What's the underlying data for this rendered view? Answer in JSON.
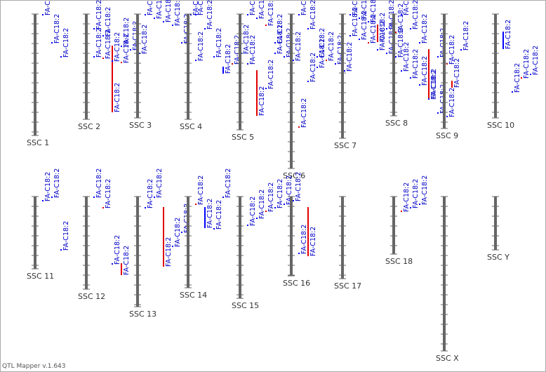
{
  "chromosomes": [
    {
      "name": "SSC 1",
      "length": 173,
      "qtls": [
        {
          "label": "FA-C18:2",
          "start": 0,
          "end": 2,
          "color": "#0000ff"
        },
        {
          "label": "FA-C18:2",
          "start": 40,
          "end": 42,
          "color": "#0000ff"
        },
        {
          "label": "FA-C18:2",
          "start": 60,
          "end": 62,
          "color": "#0000ff"
        }
      ]
    },
    {
      "name": "SSC 2",
      "length": 150,
      "qtls": [
        {
          "label": "FA-C18:2",
          "start": 20,
          "end": 22,
          "color": "#0000ff"
        },
        {
          "label": "FA-C18:2",
          "start": 30,
          "end": 32,
          "color": "#0000ff"
        },
        {
          "label": "FA-C18:2",
          "start": 45,
          "end": 140,
          "color": "#e00000"
        },
        {
          "label": "FA-C18:2",
          "start": 45,
          "end": 47,
          "color": "#0000ff"
        },
        {
          "label": "FA-C18:2",
          "start": 50,
          "end": 52,
          "color": "#0000ff"
        },
        {
          "label": "FA-C18:2",
          "start": 55,
          "end": 57,
          "color": "#0000ff"
        },
        {
          "label": "FA-C18:2",
          "start": 60,
          "end": 62,
          "color": "#0000ff"
        },
        {
          "label": "FA-C18:2",
          "start": 62,
          "end": 64,
          "color": "#e00000"
        },
        {
          "label": "FA-C18:2",
          "start": 66,
          "end": 68,
          "color": "#0000ff"
        },
        {
          "label": "FA-C18:2",
          "start": 68,
          "end": 70,
          "color": "#e00000"
        }
      ]
    },
    {
      "name": "SSC 3",
      "length": 148,
      "qtls": [
        {
          "label": "FA-C18:2",
          "start": 0,
          "end": 2,
          "color": "#0000ff"
        },
        {
          "label": "FA-C18:2",
          "start": 5,
          "end": 7,
          "color": "#0000ff"
        },
        {
          "label": "FA-C18:2",
          "start": 10,
          "end": 12,
          "color": "#0000ff"
        },
        {
          "label": "FA-C18:2",
          "start": 15,
          "end": 17,
          "color": "#0000ff"
        },
        {
          "label": "FA-C18:2",
          "start": 40,
          "end": 42,
          "color": "#0000ff"
        },
        {
          "label": "FA-C18:2",
          "start": 0,
          "end": 2,
          "color": "#0000ff"
        }
      ]
    },
    {
      "name": "SSC 4",
      "length": 150,
      "qtls": [
        {
          "label": "FA-C18:2",
          "start": 0,
          "end": 2,
          "color": "#0000ff"
        },
        {
          "label": "FA-C18:2",
          "start": 20,
          "end": 22,
          "color": "#0000ff"
        },
        {
          "label": "FA-C18:2",
          "start": 60,
          "end": 62,
          "color": "#0000ff"
        },
        {
          "label": "FA-C18:2",
          "start": 75,
          "end": 85,
          "color": "#0000ff"
        },
        {
          "label": "FA-C18:2",
          "start": 70,
          "end": 72,
          "color": "#e00000"
        },
        {
          "label": "FA-C18:2",
          "start": 55,
          "end": 57,
          "color": "#0000ff"
        },
        {
          "label": "FA-C18:2",
          "start": 65,
          "end": 67,
          "color": "#0000ff"
        }
      ]
    },
    {
      "name": "SSC 5",
      "length": 165,
      "qtls": [
        {
          "label": "FA-C18:2",
          "start": 0,
          "end": 2,
          "color": "#0000ff"
        },
        {
          "label": "FA-C18:2",
          "start": 5,
          "end": 7,
          "color": "#0000ff"
        },
        {
          "label": "FA-C18:2",
          "start": 15,
          "end": 17,
          "color": "#e00000"
        },
        {
          "label": "FA-C18:2",
          "start": 40,
          "end": 42,
          "color": "#0000ff"
        },
        {
          "label": "FA-C18:2",
          "start": 60,
          "end": 62,
          "color": "#0000ff"
        },
        {
          "label": "FA-C18:2",
          "start": 65,
          "end": 67,
          "color": "#0000ff"
        },
        {
          "label": "FA-C18:2",
          "start": 70,
          "end": 72,
          "color": "#0000ff"
        },
        {
          "label": "FA-C18:2",
          "start": 80,
          "end": 145,
          "color": "#e00000"
        },
        {
          "label": "FA-C18:2",
          "start": 105,
          "end": 107,
          "color": "#0000ff"
        },
        {
          "label": "FA-C18:2",
          "start": 55,
          "end": 57,
          "color": "#0000ff"
        }
      ]
    },
    {
      "name": "SSC 6",
      "length": 220,
      "qtls": [
        {
          "label": "FA-C18:2",
          "start": 0,
          "end": 2,
          "color": "#0000ff"
        },
        {
          "label": "FA-C18:2",
          "start": 20,
          "end": 22,
          "color": "#0000ff"
        },
        {
          "label": "FA-C18:2",
          "start": 60,
          "end": 62,
          "color": "#0000ff"
        },
        {
          "label": "FA-C18:2",
          "start": 65,
          "end": 67,
          "color": "#e00000"
        },
        {
          "label": "FA-C18:2",
          "start": 70,
          "end": 72,
          "color": "#0000ff"
        },
        {
          "label": "FA-C18:2",
          "start": 80,
          "end": 82,
          "color": "#0000ff"
        },
        {
          "label": "FA-C18:2",
          "start": 160,
          "end": 162,
          "color": "#e00000"
        },
        {
          "label": "FA-C18:2",
          "start": 95,
          "end": 97,
          "color": "#0000ff"
        },
        {
          "label": "FA-C18:2",
          "start": 75,
          "end": 77,
          "color": "#0000ff"
        }
      ]
    },
    {
      "name": "SSC 7",
      "length": 177,
      "qtls": [
        {
          "label": "FA-C18:2",
          "start": 0,
          "end": 2,
          "color": "#0000ff"
        },
        {
          "label": "FA-C18:2",
          "start": 5,
          "end": 7,
          "color": "#0000ff"
        },
        {
          "label": "FA-C18:2",
          "start": 10,
          "end": 12,
          "color": "#0000ff"
        },
        {
          "label": "FA-C18:2",
          "start": 15,
          "end": 40,
          "color": "#e00000"
        },
        {
          "label": "FA-C18:2",
          "start": 20,
          "end": 22,
          "color": "#0000ff"
        },
        {
          "label": "FA-C18:2",
          "start": 25,
          "end": 27,
          "color": "#e00000"
        },
        {
          "label": "FA-C18:2",
          "start": 30,
          "end": 32,
          "color": "#0000ff"
        },
        {
          "label": "FA-C18:2",
          "start": 35,
          "end": 37,
          "color": "#0000ff"
        },
        {
          "label": "FA-C18:2",
          "start": 40,
          "end": 42,
          "color": "#e00000"
        },
        {
          "label": "FA-C18:2",
          "start": 50,
          "end": 52,
          "color": "#0000ff"
        },
        {
          "label": "FA-C18:2",
          "start": 55,
          "end": 57,
          "color": "#0000ff"
        },
        {
          "label": "FA-C18:2",
          "start": 60,
          "end": 62,
          "color": "#0000ff"
        }
      ]
    },
    {
      "name": "SSC 8",
      "length": 145,
      "qtls": [
        {
          "label": "FA-C18:2",
          "start": 0,
          "end": 2,
          "color": "#0000ff"
        },
        {
          "label": "FA-C18:2",
          "start": 20,
          "end": 22,
          "color": "#0000ff"
        },
        {
          "label": "FA-C18:2",
          "start": 40,
          "end": 42,
          "color": "#0000ff"
        },
        {
          "label": "FA-C18:2",
          "start": 50,
          "end": 120,
          "color": "#e00000"
        },
        {
          "label": "FA-C18:2",
          "start": 60,
          "end": 62,
          "color": "#0000ff"
        },
        {
          "label": "FA-C18:2",
          "start": 70,
          "end": 72,
          "color": "#e00000"
        },
        {
          "label": "FA-C18:2",
          "start": 80,
          "end": 82,
          "color": "#0000ff"
        },
        {
          "label": "FA-C18:2",
          "start": 90,
          "end": 92,
          "color": "#0000ff"
        },
        {
          "label": "FA-C18:2",
          "start": 100,
          "end": 102,
          "color": "#0000ff"
        },
        {
          "label": "FA-C18:2",
          "start": 120,
          "end": 122,
          "color": "#0000ff"
        },
        {
          "label": "FA-C18:2",
          "start": 140,
          "end": 142,
          "color": "#0000ff"
        },
        {
          "label": "FA-C18:2",
          "start": 145,
          "end": 147,
          "color": "#0000ff"
        }
      ]
    },
    {
      "name": "SSC 9",
      "length": 163,
      "qtls": [
        {
          "label": "FA-C18:2",
          "start": 95,
          "end": 105,
          "color": "#e00000"
        },
        {
          "label": "FA-C18:2",
          "start": 50,
          "end": 52,
          "color": "#0000ff"
        }
      ]
    },
    {
      "name": "SSC 10",
      "length": 148,
      "qtls": [
        {
          "label": "FA-C18:2",
          "start": 25,
          "end": 50,
          "color": "#0000ff"
        },
        {
          "label": "FA-C18:2",
          "start": 110,
          "end": 112,
          "color": "#0000ff"
        },
        {
          "label": "FA-C18:2",
          "start": 90,
          "end": 92,
          "color": "#e00000"
        },
        {
          "label": "FA-C18:2",
          "start": 85,
          "end": 87,
          "color": "#0000ff"
        }
      ]
    },
    {
      "name": "SSC 11",
      "length": 103,
      "qtls": [
        {
          "label": "FA-C18:2",
          "start": 5,
          "end": 7,
          "color": "#0000ff"
        },
        {
          "label": "FA-C18:2",
          "start": 0,
          "end": 2,
          "color": "#0000ff"
        },
        {
          "label": "FA-C18:2",
          "start": 75,
          "end": 77,
          "color": "#0000ff"
        }
      ]
    },
    {
      "name": "SSC 12",
      "length": 132,
      "qtls": [
        {
          "label": "FA-C18:2",
          "start": 0,
          "end": 2,
          "color": "#0000ff"
        },
        {
          "label": "FA-C18:2",
          "start": 15,
          "end": 17,
          "color": "#e00000"
        },
        {
          "label": "FA-C18:2",
          "start": 95,
          "end": 97,
          "color": "#0000ff"
        },
        {
          "label": "FA-C18:2",
          "start": 95,
          "end": 112,
          "color": "#e00000"
        }
      ]
    },
    {
      "name": "SSC 13",
      "length": 157,
      "qtls": [
        {
          "label": "FA-C18:2",
          "start": 15,
          "end": 17,
          "color": "#0000ff"
        },
        {
          "label": "FA-C18:2",
          "start": 0,
          "end": 2,
          "color": "#0000ff"
        },
        {
          "label": "FA-C18:2",
          "start": 15,
          "end": 100,
          "color": "#e00000"
        },
        {
          "label": "FA-C18:2",
          "start": 70,
          "end": 72,
          "color": "#0000ff"
        },
        {
          "label": "FA-C18:2",
          "start": 50,
          "end": 52,
          "color": "#0000ff"
        }
      ]
    },
    {
      "name": "SSC 14",
      "length": 130,
      "qtls": [
        {
          "label": "FA-C18:2",
          "start": 10,
          "end": 12,
          "color": "#e00000"
        },
        {
          "label": "FA-C18:2",
          "start": 15,
          "end": 45,
          "color": "#0000ff"
        },
        {
          "label": "FA-C18:2",
          "start": 45,
          "end": 47,
          "color": "#0000ff"
        },
        {
          "label": "FA-C18:2",
          "start": 0,
          "end": 2,
          "color": "#0000ff"
        }
      ]
    },
    {
      "name": "SSC 15",
      "length": 145,
      "qtls": [
        {
          "label": "FA-C18:2",
          "start": 40,
          "end": 42,
          "color": "#0000ff"
        },
        {
          "label": "FA-C18:2",
          "start": 30,
          "end": 32,
          "color": "#0000ff"
        },
        {
          "label": "FA-C18:2",
          "start": 20,
          "end": 22,
          "color": "#e00000"
        },
        {
          "label": "FA-C18:2",
          "start": 15,
          "end": 17,
          "color": "#0000ff"
        },
        {
          "label": "FA-C18:2",
          "start": 10,
          "end": 12,
          "color": "#0000ff"
        },
        {
          "label": "FA-C18:2",
          "start": 5,
          "end": 7,
          "color": "#0000ff"
        }
      ]
    },
    {
      "name": "SSC 16",
      "length": 113,
      "qtls": [
        {
          "label": "FA-C18:2",
          "start": 80,
          "end": 82,
          "color": "#0000ff"
        },
        {
          "label": "FA-C18:2",
          "start": 15,
          "end": 85,
          "color": "#e00000"
        }
      ]
    },
    {
      "name": "SSC 17",
      "length": 117,
      "qtls": []
    },
    {
      "name": "SSC 18",
      "length": 82,
      "qtls": [
        {
          "label": "FA-C18:2",
          "start": 20,
          "end": 22,
          "color": "#e00000"
        },
        {
          "label": "FA-C18:2",
          "start": 15,
          "end": 17,
          "color": "#0000ff"
        },
        {
          "label": "FA-C18:2",
          "start": 10,
          "end": 12,
          "color": "#0000ff"
        }
      ]
    },
    {
      "name": "SSC X",
      "length": 220,
      "qtls": []
    },
    {
      "name": "SSC Y",
      "length": 76,
      "qtls": []
    }
  ],
  "footer": "QTL Mapper v.1.643"
}
